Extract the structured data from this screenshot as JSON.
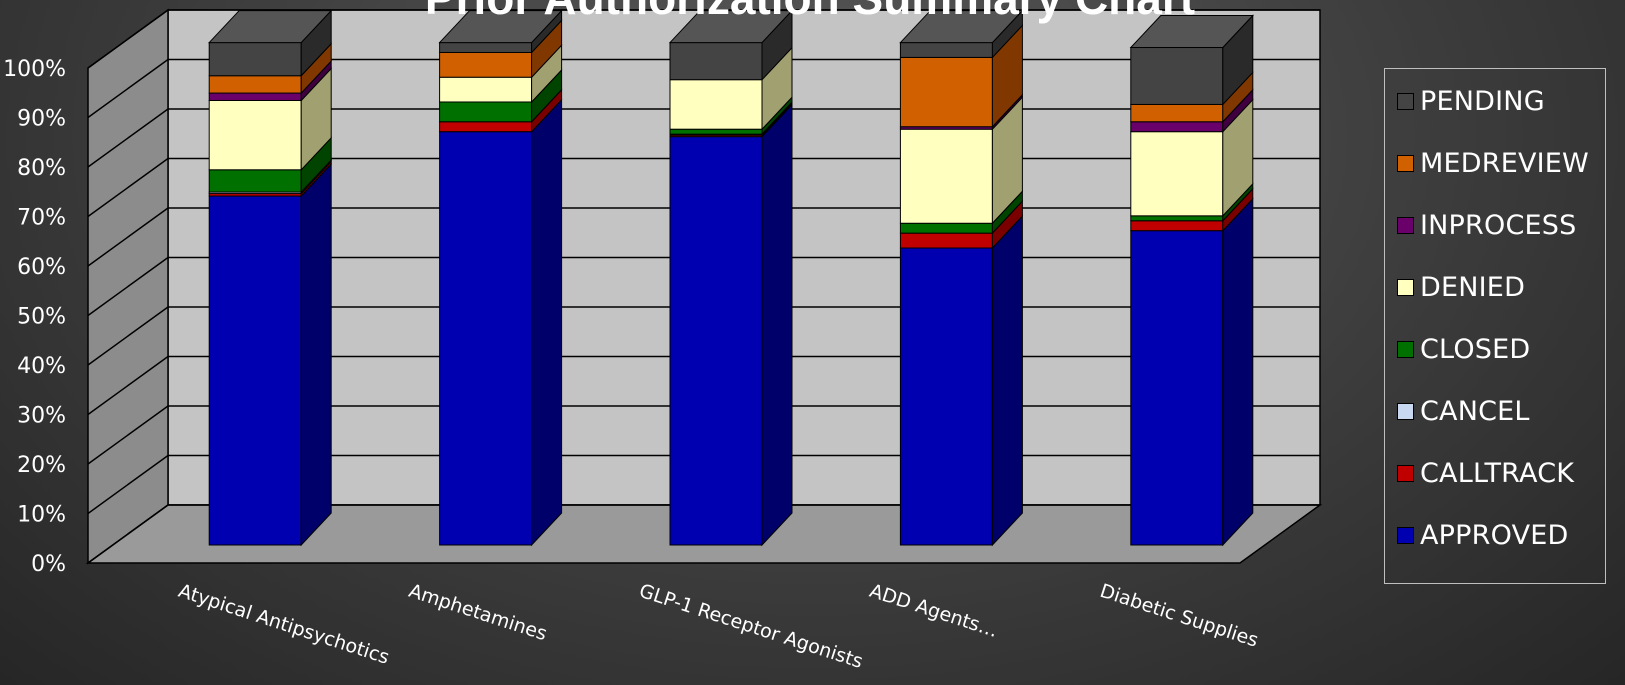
{
  "chart_data": {
    "type": "bar",
    "stacked": true,
    "three_d": true,
    "title": "Prior Authorization Summary Chart",
    "categories": [
      "Atypical Antipsychotics",
      "Amphetamines",
      "GLP-1 Receptor Agonists",
      "ADD Agents…",
      "Diabetic Supplies"
    ],
    "y_ticks": [
      "0%",
      "10%",
      "20%",
      "30%",
      "40%",
      "50%",
      "60%",
      "70%",
      "80%",
      "90%",
      "100%"
    ],
    "ylim": [
      0,
      100
    ],
    "grid": true,
    "legend_position": "right",
    "series": [
      {
        "name": "APPROVED",
        "color": "#0000b0",
        "side_color": "#00006a",
        "top_color": "#1a1ad0",
        "values": [
          70.5,
          83.5,
          82.5,
          60.0,
          63.5
        ]
      },
      {
        "name": "CALLTRACK",
        "color": "#c00000",
        "side_color": "#7a0000",
        "top_color": "#e02020",
        "values": [
          0.5,
          2.0,
          0.3,
          3.0,
          2.0
        ]
      },
      {
        "name": "CANCEL",
        "color": "#c8d8f0",
        "side_color": "#8a9ab0",
        "top_color": "#dde8f8",
        "values": [
          0.3,
          0.0,
          0.2,
          0.0,
          0.0
        ]
      },
      {
        "name": "CLOSED",
        "color": "#007000",
        "side_color": "#004400",
        "top_color": "#108a10",
        "values": [
          4.5,
          4.0,
          1.0,
          2.0,
          1.0
        ]
      },
      {
        "name": "DENIED",
        "color": "#ffffc0",
        "side_color": "#a0a070",
        "top_color": "#ffffd8",
        "values": [
          14.0,
          5.0,
          10.0,
          19.0,
          17.0
        ]
      },
      {
        "name": "INPROCESS",
        "color": "#6a006a",
        "side_color": "#400040",
        "top_color": "#800080",
        "values": [
          1.5,
          0.0,
          0.0,
          0.5,
          2.0
        ]
      },
      {
        "name": "MEDREVIEW",
        "color": "#d06000",
        "side_color": "#803800",
        "top_color": "#e07010",
        "values": [
          3.5,
          5.0,
          0.0,
          14.0,
          3.5
        ]
      },
      {
        "name": "PENDING",
        "color": "#444444",
        "side_color": "#2a2a2a",
        "top_color": "#555555",
        "values": [
          6.7,
          2.0,
          7.5,
          3.0,
          11.5
        ]
      }
    ],
    "legend_order": [
      "PENDING",
      "MEDREVIEW",
      "INPROCESS",
      "DENIED",
      "CLOSED",
      "CANCEL",
      "CALLTRACK",
      "APPROVED"
    ]
  }
}
